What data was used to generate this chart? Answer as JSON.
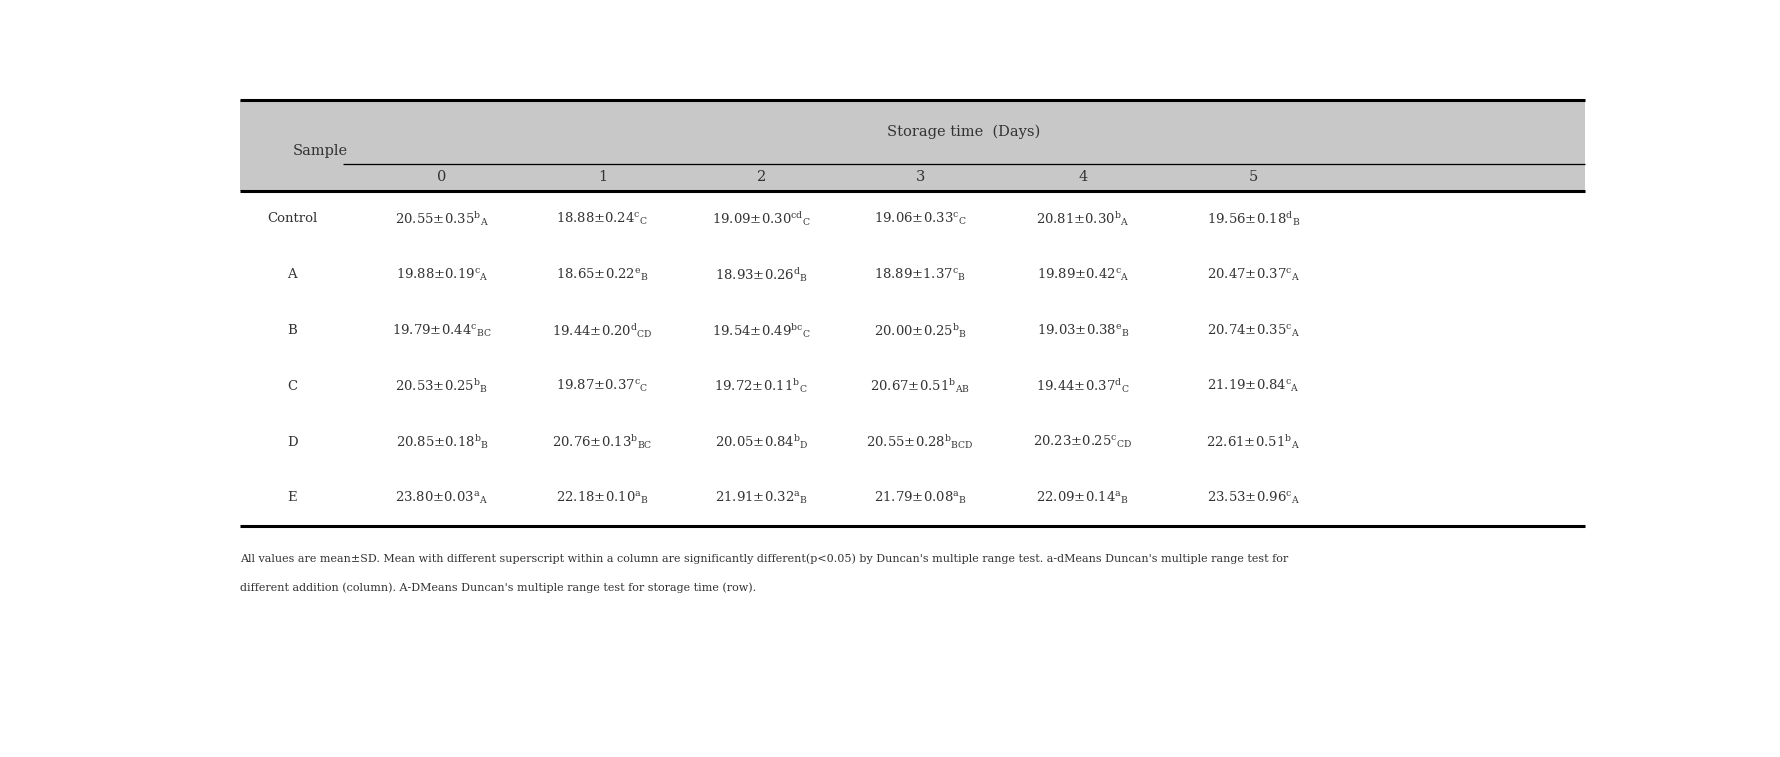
{
  "title": "Storage time  (Days)",
  "col_headers": [
    "0",
    "1",
    "2",
    "3",
    "4",
    "5"
  ],
  "row_labels": [
    "Control",
    "A",
    "B",
    "C",
    "D",
    "E"
  ],
  "cells_plain": [
    [
      "20.55±0.35",
      "b",
      "A",
      "18.88±0.24",
      "c",
      "C",
      "19.09±0.30",
      "cd",
      "C",
      "19.06±0.33",
      "c",
      "C",
      "20.81±0.30",
      "b",
      "A",
      "19.56±0.18",
      "d",
      "B"
    ],
    [
      "19.88±0.19",
      "c",
      "A",
      "18.65±0.22",
      "e",
      "B",
      "18.93±0.26",
      "d",
      "B",
      "18.89±1.37",
      "c",
      "B",
      "19.89±0.42",
      "c",
      "A",
      "20.47±0.37",
      "c",
      "A"
    ],
    [
      "19.79±0.44",
      "c",
      "BC",
      "19.44±0.20",
      "d",
      "CD",
      "19.54±0.49",
      "bc",
      "C",
      "20.00±0.25",
      "b",
      "B",
      "19.03±0.38",
      "e",
      "B",
      "20.74±0.35",
      "c",
      "A"
    ],
    [
      "20.53±0.25",
      "b",
      "B",
      "19.87±0.37",
      "c",
      "C",
      "19.72±0.11",
      "b",
      "C",
      "20.67±0.51",
      "b",
      "AB",
      "19.44±0.37",
      "d",
      "C",
      "21.19±0.84",
      "c",
      "A"
    ],
    [
      "20.85±0.18",
      "b",
      "B",
      "20.76±0.13",
      "b",
      "BC",
      "20.05±0.84",
      "b",
      "D",
      "20.55±0.28",
      "b",
      "BCD",
      "20.23±0.25",
      "c",
      "CD",
      "22.61±0.51",
      "b",
      "A"
    ],
    [
      "23.80±0.03",
      "a",
      "A",
      "22.18±0.10",
      "a",
      "B",
      "21.91±0.32",
      "a",
      "B",
      "21.79±0.08",
      "a",
      "B",
      "22.09±0.14",
      "a",
      "B",
      "23.53±0.96",
      "c",
      "A"
    ]
  ],
  "footnote1": "All values are mean±SD. Mean with different superscript within a column are significantly different(p<0.05) by Duncan's multiple range test. a-dMeans Duncan's multiple range test for",
  "footnote2": "different addition (column). A-DMeans Duncan's multiple range test for storage time (row).",
  "header_bg": "#c8c8c8",
  "bg_color": "#ffffff",
  "table_text_color": "#333333",
  "font_size": 9.5,
  "header_font_size": 10.5
}
